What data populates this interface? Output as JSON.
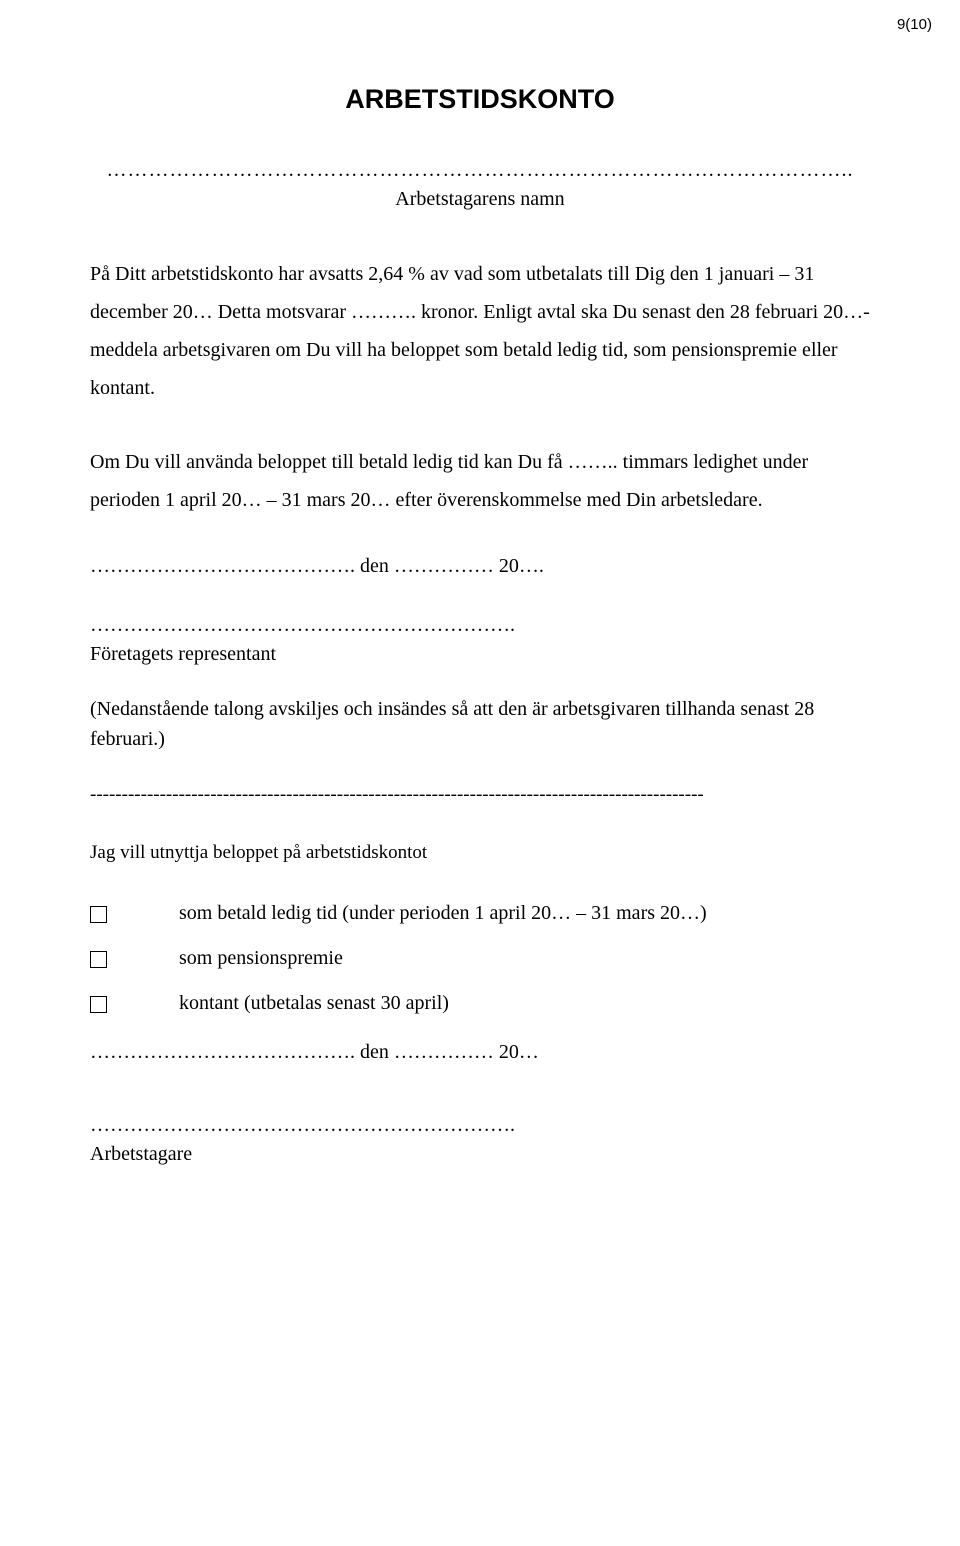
{
  "page_number": "9(10)",
  "title": "ARBETSTIDSKONTO",
  "name_dotted": "……………………………………………………………………………………………..",
  "name_label": "Arbetstagarens namn",
  "body_paragraph": "På Ditt arbetstidskonto har avsatts 2,64 % av vad som utbetalats till Dig den 1 januari – 31 december 20… Detta motsvarar ………. kronor. Enligt avtal ska Du senast den 28 februari 20…-meddela arbetsgivaren om Du vill ha beloppet som betald ledig tid, som pensionspremie eller kontant.",
  "body_paragraph2": "Om Du vill använda beloppet till betald ledig tid kan Du få …….. timmars ledighet under perioden 1 april 20… – 31 mars 20… efter överenskommelse med Din arbetsledare.",
  "date_line": "…………………………………. den …………… 20….",
  "rep_dotted": "……………………………………………………….",
  "rep_label": "Företagets representant",
  "talong_note": "(Nedanstående talong avskiljes och insändes så att den är arbetsgivaren tillhanda senast 28 februari.)",
  "separator": "-------------------------------------------------------------------------------------------------",
  "subheading": "Jag vill utnyttja beloppet på arbetstidskontot",
  "option1": "som betald ledig tid (under perioden 1 april 20… – 31 mars 20…)",
  "option2": "som pensionspremie",
  "option3": "kontant (utbetalas senast 30 april)",
  "date_line2": "…………………………………. den …………… 20…",
  "sign_dotted": "……………………………………………………….",
  "sign_label": "Arbetstagare"
}
